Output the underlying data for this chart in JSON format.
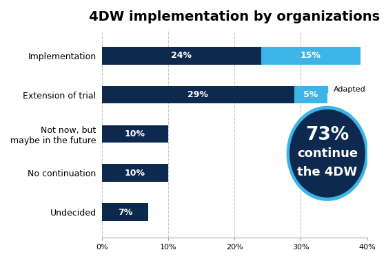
{
  "title": "4DW implementation by organizations",
  "categories": [
    "Implementation",
    "Extension of trial",
    "Not now, but\nmaybe in the future",
    "No continuation",
    "Undecided"
  ],
  "dark_blue_values": [
    24,
    29,
    10,
    10,
    7
  ],
  "light_blue_values": [
    15,
    5,
    0,
    0,
    0
  ],
  "dark_blue_color": "#0d2a4e",
  "light_blue_color": "#3db4e8",
  "dark_blue_labels": [
    "24%",
    "29%",
    "10%",
    "10%",
    "7%"
  ],
  "light_blue_labels": [
    "15%",
    "5%",
    "",
    "",
    ""
  ],
  "xlim": [
    0,
    40
  ],
  "xticks": [
    0,
    10,
    20,
    30,
    40
  ],
  "xtick_labels": [
    "0%",
    "10%",
    "20%",
    "30%",
    "40%"
  ],
  "background_color": "#ffffff",
  "grid_color": "#c8c8c8",
  "legend_label": "Adapted",
  "circle_text_line1": "73%",
  "circle_text_line2": "continue",
  "circle_text_line3": "the 4DW",
  "bar_height": 0.45,
  "title_fontsize": 14,
  "bar_label_fontsize": 9,
  "tick_fontsize": 8,
  "ylabel_fontsize": 9
}
